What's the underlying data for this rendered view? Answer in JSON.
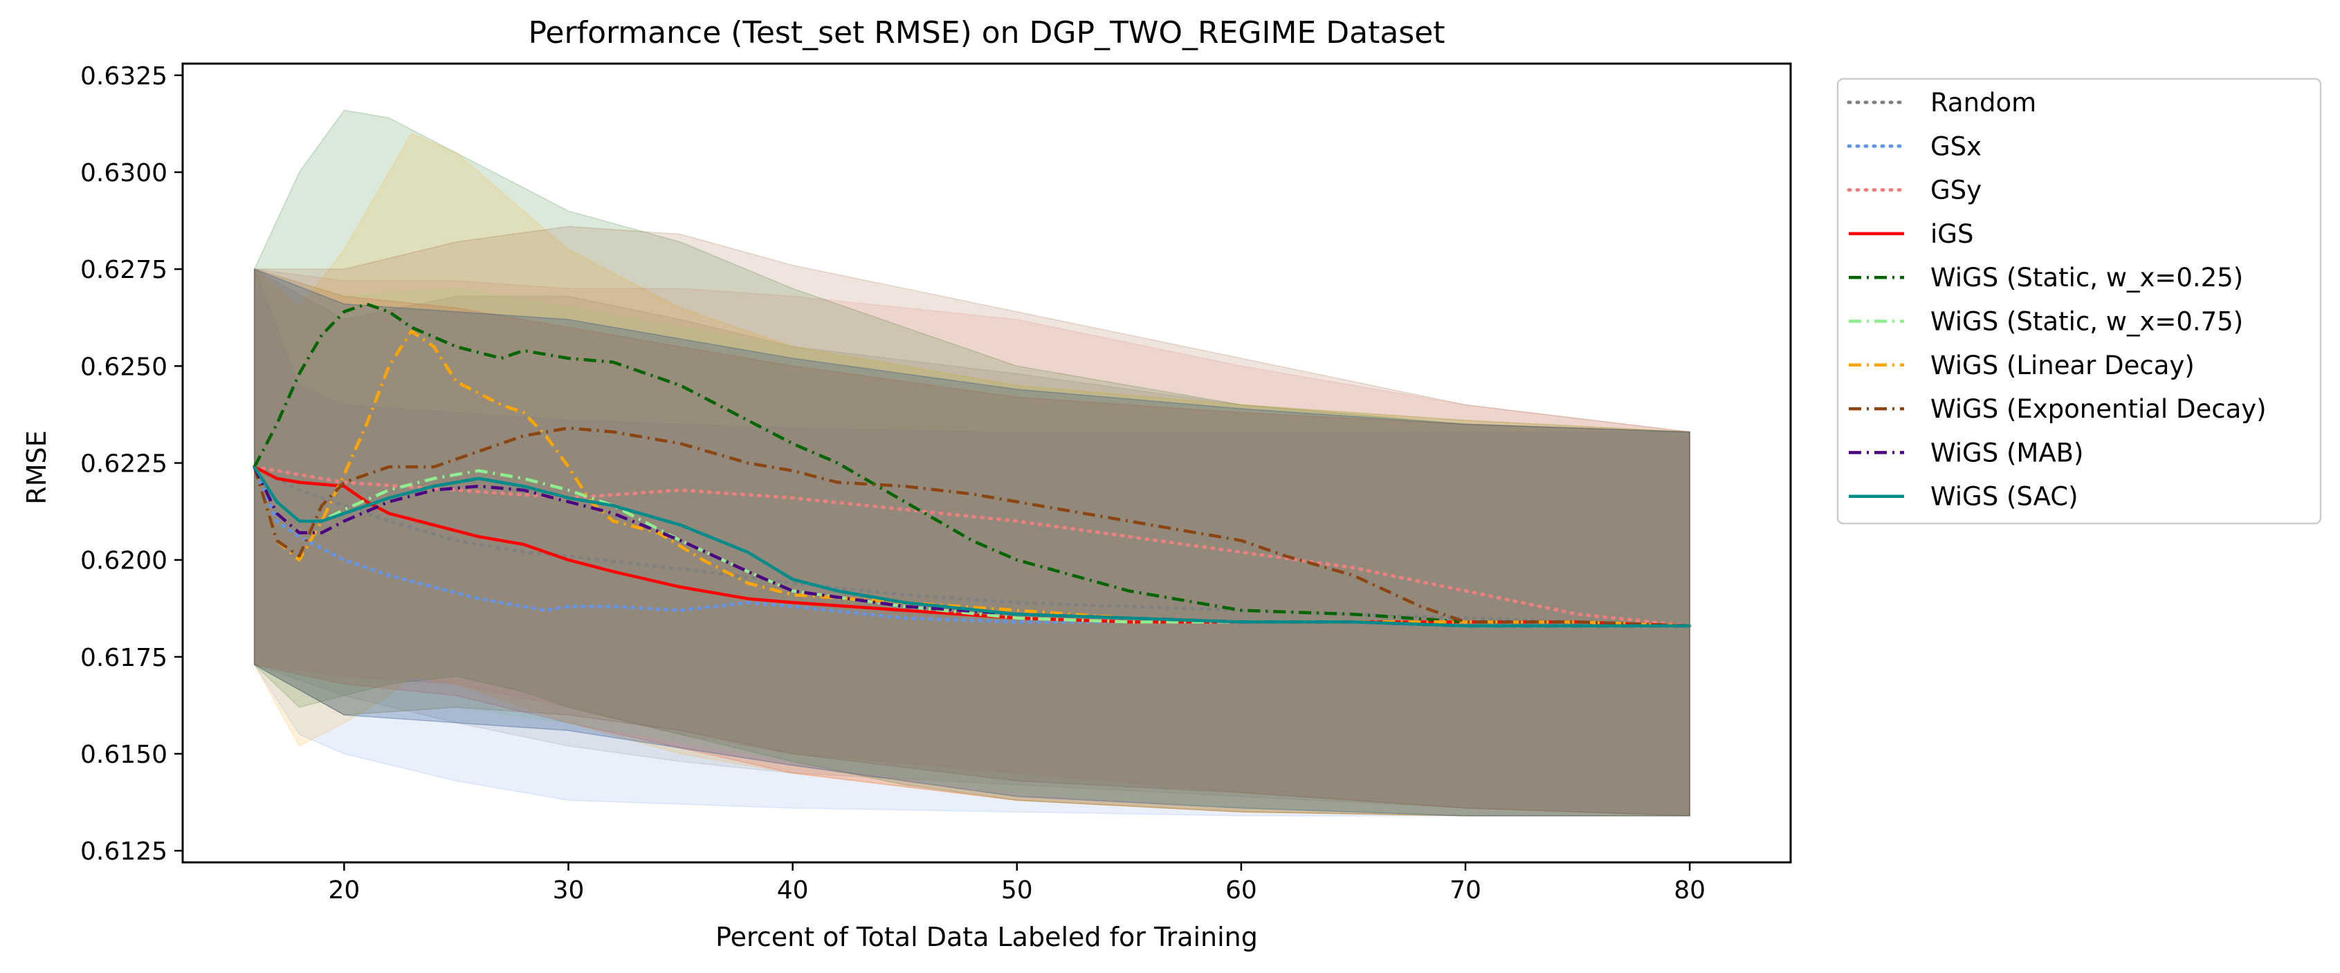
{
  "chart_data": {
    "type": "line",
    "title": "Performance (Test_set RMSE) on DGP_TWO_REGIME Dataset",
    "xlabel": "Percent of Total Data Labeled for Training",
    "ylabel": "RMSE",
    "xlim": [
      12.8,
      84.5
    ],
    "ylim": [
      0.6122,
      0.6328
    ],
    "xticks": [
      20,
      30,
      40,
      50,
      60,
      70,
      80
    ],
    "yticks": [
      0.6125,
      0.615,
      0.6175,
      0.62,
      0.6225,
      0.625,
      0.6275,
      0.63,
      0.6325
    ],
    "xtick_labels": [
      "20",
      "30",
      "40",
      "50",
      "60",
      "70",
      "80"
    ],
    "ytick_labels": [
      "0.6125",
      "0.6150",
      "0.6175",
      "0.6200",
      "0.6225",
      "0.6250",
      "0.6275",
      "0.6300",
      "0.6325"
    ],
    "grid": false,
    "legend_position": "outside-right",
    "series": [
      {
        "name": "Random",
        "color": "#808080",
        "style": "dotted",
        "x": [
          16,
          18,
          20,
          22,
          25,
          28,
          30,
          33,
          36,
          40,
          45,
          50,
          55,
          60,
          65,
          70,
          75,
          80
        ],
        "y": [
          0.6224,
          0.6218,
          0.6214,
          0.621,
          0.6205,
          0.6202,
          0.6201,
          0.6199,
          0.6197,
          0.6194,
          0.6191,
          0.6189,
          0.6188,
          0.6187,
          0.6186,
          0.6185,
          0.6184,
          0.6183
        ],
        "band_x": [
          16,
          20,
          25,
          30,
          35,
          40,
          50,
          60,
          70,
          80
        ],
        "band_upper": [
          0.6275,
          0.6262,
          0.6268,
          0.6268,
          0.6262,
          0.6255,
          0.6248,
          0.624,
          0.6236,
          0.6233
        ],
        "band_lower": [
          0.6173,
          0.6165,
          0.6158,
          0.6152,
          0.6148,
          0.6145,
          0.6142,
          0.6139,
          0.6136,
          0.6134
        ]
      },
      {
        "name": "GSx",
        "color": "#6495ED",
        "style": "dotted",
        "x": [
          16,
          17,
          18,
          19,
          20,
          22,
          24,
          26,
          28,
          29,
          30,
          32,
          35,
          38,
          40,
          45,
          50,
          55,
          60,
          65,
          70,
          75,
          80
        ],
        "y": [
          0.6224,
          0.621,
          0.6206,
          0.6203,
          0.62,
          0.6196,
          0.6193,
          0.619,
          0.6188,
          0.6187,
          0.6188,
          0.6188,
          0.6187,
          0.6189,
          0.6188,
          0.6185,
          0.6184,
          0.6184,
          0.6184,
          0.6184,
          0.6184,
          0.6184,
          0.6183
        ],
        "band_x": [
          16,
          18,
          20,
          25,
          30,
          35,
          40,
          50,
          60,
          70,
          80
        ],
        "band_upper": [
          0.6275,
          0.6245,
          0.624,
          0.6238,
          0.6236,
          0.6235,
          0.6234,
          0.6233,
          0.6233,
          0.6233,
          0.6233
        ],
        "band_lower": [
          0.6173,
          0.6155,
          0.615,
          0.6143,
          0.6138,
          0.6137,
          0.6136,
          0.6135,
          0.6134,
          0.6134,
          0.6134
        ]
      },
      {
        "name": "GSy",
        "color": "#F08080",
        "style": "dotted",
        "x": [
          16,
          18,
          20,
          25,
          30,
          35,
          40,
          45,
          50,
          55,
          60,
          65,
          70,
          75,
          80
        ],
        "y": [
          0.6224,
          0.6222,
          0.622,
          0.6218,
          0.6216,
          0.6218,
          0.6216,
          0.6213,
          0.621,
          0.6206,
          0.6202,
          0.6198,
          0.6192,
          0.6186,
          0.6183
        ],
        "band_x": [
          16,
          20,
          25,
          30,
          35,
          40,
          50,
          60,
          70,
          80
        ],
        "band_upper": [
          0.6275,
          0.6272,
          0.6272,
          0.627,
          0.627,
          0.6268,
          0.6262,
          0.625,
          0.624,
          0.6233
        ],
        "band_lower": [
          0.6173,
          0.617,
          0.6168,
          0.6162,
          0.6155,
          0.615,
          0.6145,
          0.614,
          0.6136,
          0.6134
        ]
      },
      {
        "name": "iGS",
        "color": "#FF0000",
        "style": "solid",
        "x": [
          16,
          17,
          18,
          20,
          21,
          22,
          24,
          26,
          28,
          30,
          32,
          35,
          38,
          40,
          45,
          50,
          55,
          60,
          65,
          70,
          75,
          80
        ],
        "y": [
          0.6224,
          0.6221,
          0.622,
          0.6219,
          0.6215,
          0.6212,
          0.6209,
          0.6206,
          0.6204,
          0.62,
          0.6197,
          0.6193,
          0.619,
          0.6189,
          0.6187,
          0.6185,
          0.6184,
          0.6184,
          0.6184,
          0.6184,
          0.6184,
          0.6183
        ],
        "band_x": [
          16,
          20,
          25,
          30,
          40,
          50,
          60,
          70,
          80
        ],
        "band_upper": [
          0.6275,
          0.6268,
          0.6265,
          0.626,
          0.625,
          0.6242,
          0.6238,
          0.6235,
          0.6233
        ],
        "band_lower": [
          0.6173,
          0.6168,
          0.6165,
          0.6158,
          0.6145,
          0.6138,
          0.6135,
          0.6134,
          0.6134
        ]
      },
      {
        "name": "WiGS (Static, w_x=0.25)",
        "color": "#006400",
        "style": "dashdot",
        "x": [
          16,
          17,
          18,
          19,
          20,
          21,
          22,
          23,
          25,
          27,
          28,
          30,
          32,
          35,
          38,
          40,
          42,
          45,
          48,
          50,
          55,
          60,
          65,
          70,
          75,
          80
        ],
        "y": [
          0.6224,
          0.6235,
          0.6248,
          0.6258,
          0.6264,
          0.6266,
          0.6264,
          0.626,
          0.6255,
          0.6252,
          0.6254,
          0.6252,
          0.6251,
          0.6245,
          0.6236,
          0.623,
          0.6225,
          0.6215,
          0.6205,
          0.62,
          0.6192,
          0.6187,
          0.6186,
          0.6184,
          0.6184,
          0.6183
        ],
        "band_x": [
          16,
          18,
          20,
          22,
          25,
          28,
          30,
          35,
          40,
          45,
          50,
          60,
          70,
          80
        ],
        "band_upper": [
          0.6275,
          0.63,
          0.6316,
          0.6314,
          0.6305,
          0.6296,
          0.629,
          0.6282,
          0.627,
          0.626,
          0.625,
          0.624,
          0.6235,
          0.6233
        ],
        "band_lower": [
          0.6173,
          0.6162,
          0.6165,
          0.6168,
          0.617,
          0.6166,
          0.6162,
          0.6155,
          0.6148,
          0.6142,
          0.6138,
          0.6135,
          0.6134,
          0.6134
        ]
      },
      {
        "name": "WiGS (Static, w_x=0.75)",
        "color": "#90EE90",
        "style": "dashdot",
        "x": [
          16,
          17,
          18,
          19,
          20,
          22,
          24,
          26,
          28,
          30,
          32,
          35,
          38,
          40,
          45,
          50,
          55,
          60,
          65,
          70,
          75,
          80
        ],
        "y": [
          0.6224,
          0.6215,
          0.621,
          0.621,
          0.6213,
          0.6218,
          0.6221,
          0.6223,
          0.6221,
          0.6218,
          0.6214,
          0.6205,
          0.6197,
          0.6192,
          0.6188,
          0.6185,
          0.6184,
          0.6184,
          0.6184,
          0.6183,
          0.6183,
          0.6183
        ],
        "band_x": [
          16,
          20,
          25,
          30,
          40,
          50,
          60,
          70,
          80
        ],
        "band_upper": [
          0.6275,
          0.6268,
          0.627,
          0.6265,
          0.6255,
          0.6245,
          0.624,
          0.6236,
          0.6233
        ],
        "band_lower": [
          0.6173,
          0.616,
          0.6162,
          0.6158,
          0.6148,
          0.614,
          0.6136,
          0.6134,
          0.6134
        ]
      },
      {
        "name": "WiGS (Linear Decay)",
        "color": "#FFA500",
        "style": "dashdot",
        "x": [
          16,
          17,
          18,
          19,
          20,
          21,
          22,
          23,
          24,
          25,
          26,
          27,
          28,
          29,
          30,
          31,
          32,
          34,
          36,
          38,
          40,
          45,
          50,
          55,
          60,
          65,
          70,
          75,
          80
        ],
        "y": [
          0.6224,
          0.6205,
          0.62,
          0.621,
          0.6222,
          0.6235,
          0.625,
          0.6259,
          0.6255,
          0.6246,
          0.6243,
          0.624,
          0.6238,
          0.6232,
          0.6224,
          0.6215,
          0.621,
          0.6207,
          0.62,
          0.6194,
          0.6191,
          0.6189,
          0.6187,
          0.6185,
          0.6184,
          0.6184,
          0.6184,
          0.6184,
          0.6183
        ],
        "band_x": [
          16,
          18,
          20,
          22,
          23,
          25,
          28,
          30,
          35,
          40,
          50,
          60,
          70,
          80
        ],
        "band_upper": [
          0.6275,
          0.6265,
          0.628,
          0.63,
          0.631,
          0.6305,
          0.629,
          0.628,
          0.6265,
          0.6255,
          0.6245,
          0.624,
          0.6236,
          0.6233
        ],
        "band_lower": [
          0.6173,
          0.6152,
          0.6158,
          0.6165,
          0.617,
          0.6168,
          0.6162,
          0.6158,
          0.615,
          0.6145,
          0.6138,
          0.6135,
          0.6134,
          0.6134
        ]
      },
      {
        "name": "WiGS (Exponential Decay)",
        "color": "#8B4513",
        "style": "dashdot",
        "x": [
          16,
          17,
          18,
          19,
          20,
          22,
          24,
          26,
          28,
          30,
          32,
          35,
          38,
          40,
          42,
          45,
          48,
          50,
          55,
          60,
          62,
          65,
          68,
          70,
          75,
          80
        ],
        "y": [
          0.6224,
          0.6205,
          0.6201,
          0.6214,
          0.622,
          0.6224,
          0.6224,
          0.6228,
          0.6232,
          0.6234,
          0.6233,
          0.623,
          0.6225,
          0.6223,
          0.622,
          0.6219,
          0.6217,
          0.6215,
          0.621,
          0.6205,
          0.6201,
          0.6196,
          0.6188,
          0.6184,
          0.6184,
          0.6183
        ],
        "band_x": [
          16,
          20,
          25,
          30,
          35,
          40,
          50,
          60,
          70,
          80
        ],
        "band_upper": [
          0.6275,
          0.6275,
          0.6282,
          0.6286,
          0.6284,
          0.6276,
          0.6264,
          0.6252,
          0.624,
          0.6233
        ],
        "band_lower": [
          0.6173,
          0.616,
          0.6162,
          0.616,
          0.6156,
          0.615,
          0.6143,
          0.614,
          0.6136,
          0.6134
        ]
      },
      {
        "name": "WiGS (MAB)",
        "color": "#4B0082",
        "style": "dashdot",
        "x": [
          16,
          17,
          18,
          19,
          20,
          22,
          24,
          26,
          28,
          30,
          32,
          35,
          38,
          40,
          45,
          50,
          55,
          60,
          65,
          70,
          75,
          80
        ],
        "y": [
          0.6224,
          0.6212,
          0.6207,
          0.6207,
          0.621,
          0.6215,
          0.6218,
          0.6219,
          0.6218,
          0.6215,
          0.6212,
          0.6205,
          0.6197,
          0.6192,
          0.6188,
          0.6186,
          0.6185,
          0.6184,
          0.6184,
          0.6183,
          0.6183,
          0.6183
        ],
        "band_x": [
          16,
          20,
          30,
          40,
          50,
          60,
          70,
          80
        ],
        "band_upper": [
          0.6275,
          0.6266,
          0.6262,
          0.6252,
          0.6244,
          0.6239,
          0.6235,
          0.6233
        ],
        "band_lower": [
          0.6173,
          0.616,
          0.6156,
          0.6147,
          0.6139,
          0.6136,
          0.6134,
          0.6134
        ]
      },
      {
        "name": "WiGS (SAC)",
        "color": "#008B8B",
        "style": "solid",
        "x": [
          16,
          17,
          18,
          19,
          20,
          22,
          24,
          26,
          28,
          30,
          32,
          35,
          38,
          40,
          42,
          45,
          50,
          55,
          60,
          65,
          70,
          75,
          80
        ],
        "y": [
          0.6224,
          0.6215,
          0.621,
          0.621,
          0.6212,
          0.6216,
          0.6219,
          0.6221,
          0.6219,
          0.6216,
          0.6214,
          0.6209,
          0.6202,
          0.6195,
          0.6192,
          0.6189,
          0.6186,
          0.6185,
          0.6184,
          0.6184,
          0.6183,
          0.6183,
          0.6183
        ],
        "band_x": [
          16,
          20,
          30,
          40,
          50,
          60,
          70,
          80
        ],
        "band_upper": [
          0.6275,
          0.6266,
          0.6262,
          0.6252,
          0.6244,
          0.6239,
          0.6235,
          0.6233
        ],
        "band_lower": [
          0.6173,
          0.616,
          0.6156,
          0.6147,
          0.6139,
          0.6136,
          0.6134,
          0.6134
        ]
      }
    ]
  }
}
